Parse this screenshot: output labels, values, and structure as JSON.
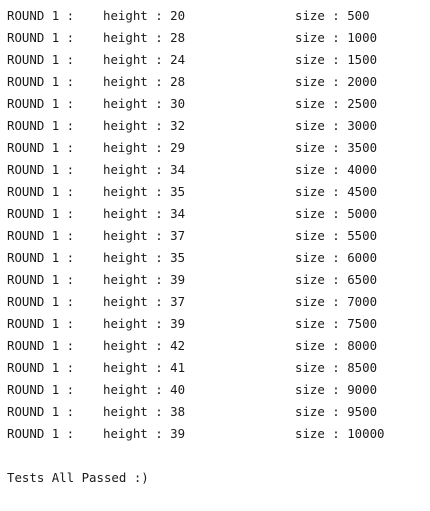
{
  "console": {
    "rows": [
      {
        "round": "ROUND 1 :",
        "height": "height : 20",
        "size": "size : 500"
      },
      {
        "round": "ROUND 1 :",
        "height": "height : 28",
        "size": "size : 1000"
      },
      {
        "round": "ROUND 1 :",
        "height": "height : 24",
        "size": "size : 1500"
      },
      {
        "round": "ROUND 1 :",
        "height": "height : 28",
        "size": "size : 2000"
      },
      {
        "round": "ROUND 1 :",
        "height": "height : 30",
        "size": "size : 2500"
      },
      {
        "round": "ROUND 1 :",
        "height": "height : 32",
        "size": "size : 3000"
      },
      {
        "round": "ROUND 1 :",
        "height": "height : 29",
        "size": "size : 3500"
      },
      {
        "round": "ROUND 1 :",
        "height": "height : 34",
        "size": "size : 4000"
      },
      {
        "round": "ROUND 1 :",
        "height": "height : 35",
        "size": "size : 4500"
      },
      {
        "round": "ROUND 1 :",
        "height": "height : 34",
        "size": "size : 5000"
      },
      {
        "round": "ROUND 1 :",
        "height": "height : 37",
        "size": "size : 5500"
      },
      {
        "round": "ROUND 1 :",
        "height": "height : 35",
        "size": "size : 6000"
      },
      {
        "round": "ROUND 1 :",
        "height": "height : 39",
        "size": "size : 6500"
      },
      {
        "round": "ROUND 1 :",
        "height": "height : 37",
        "size": "size : 7000"
      },
      {
        "round": "ROUND 1 :",
        "height": "height : 39",
        "size": "size : 7500"
      },
      {
        "round": "ROUND 1 :",
        "height": "height : 42",
        "size": "size : 8000"
      },
      {
        "round": "ROUND 1 :",
        "height": "height : 41",
        "size": "size : 8500"
      },
      {
        "round": "ROUND 1 :",
        "height": "height : 40",
        "size": "size : 9000"
      },
      {
        "round": "ROUND 1 :",
        "height": "height : 38",
        "size": "size : 9500"
      },
      {
        "round": "ROUND 1 :",
        "height": "height : 39",
        "size": "size : 10000"
      }
    ],
    "summary": "Tests All Passed :)"
  }
}
